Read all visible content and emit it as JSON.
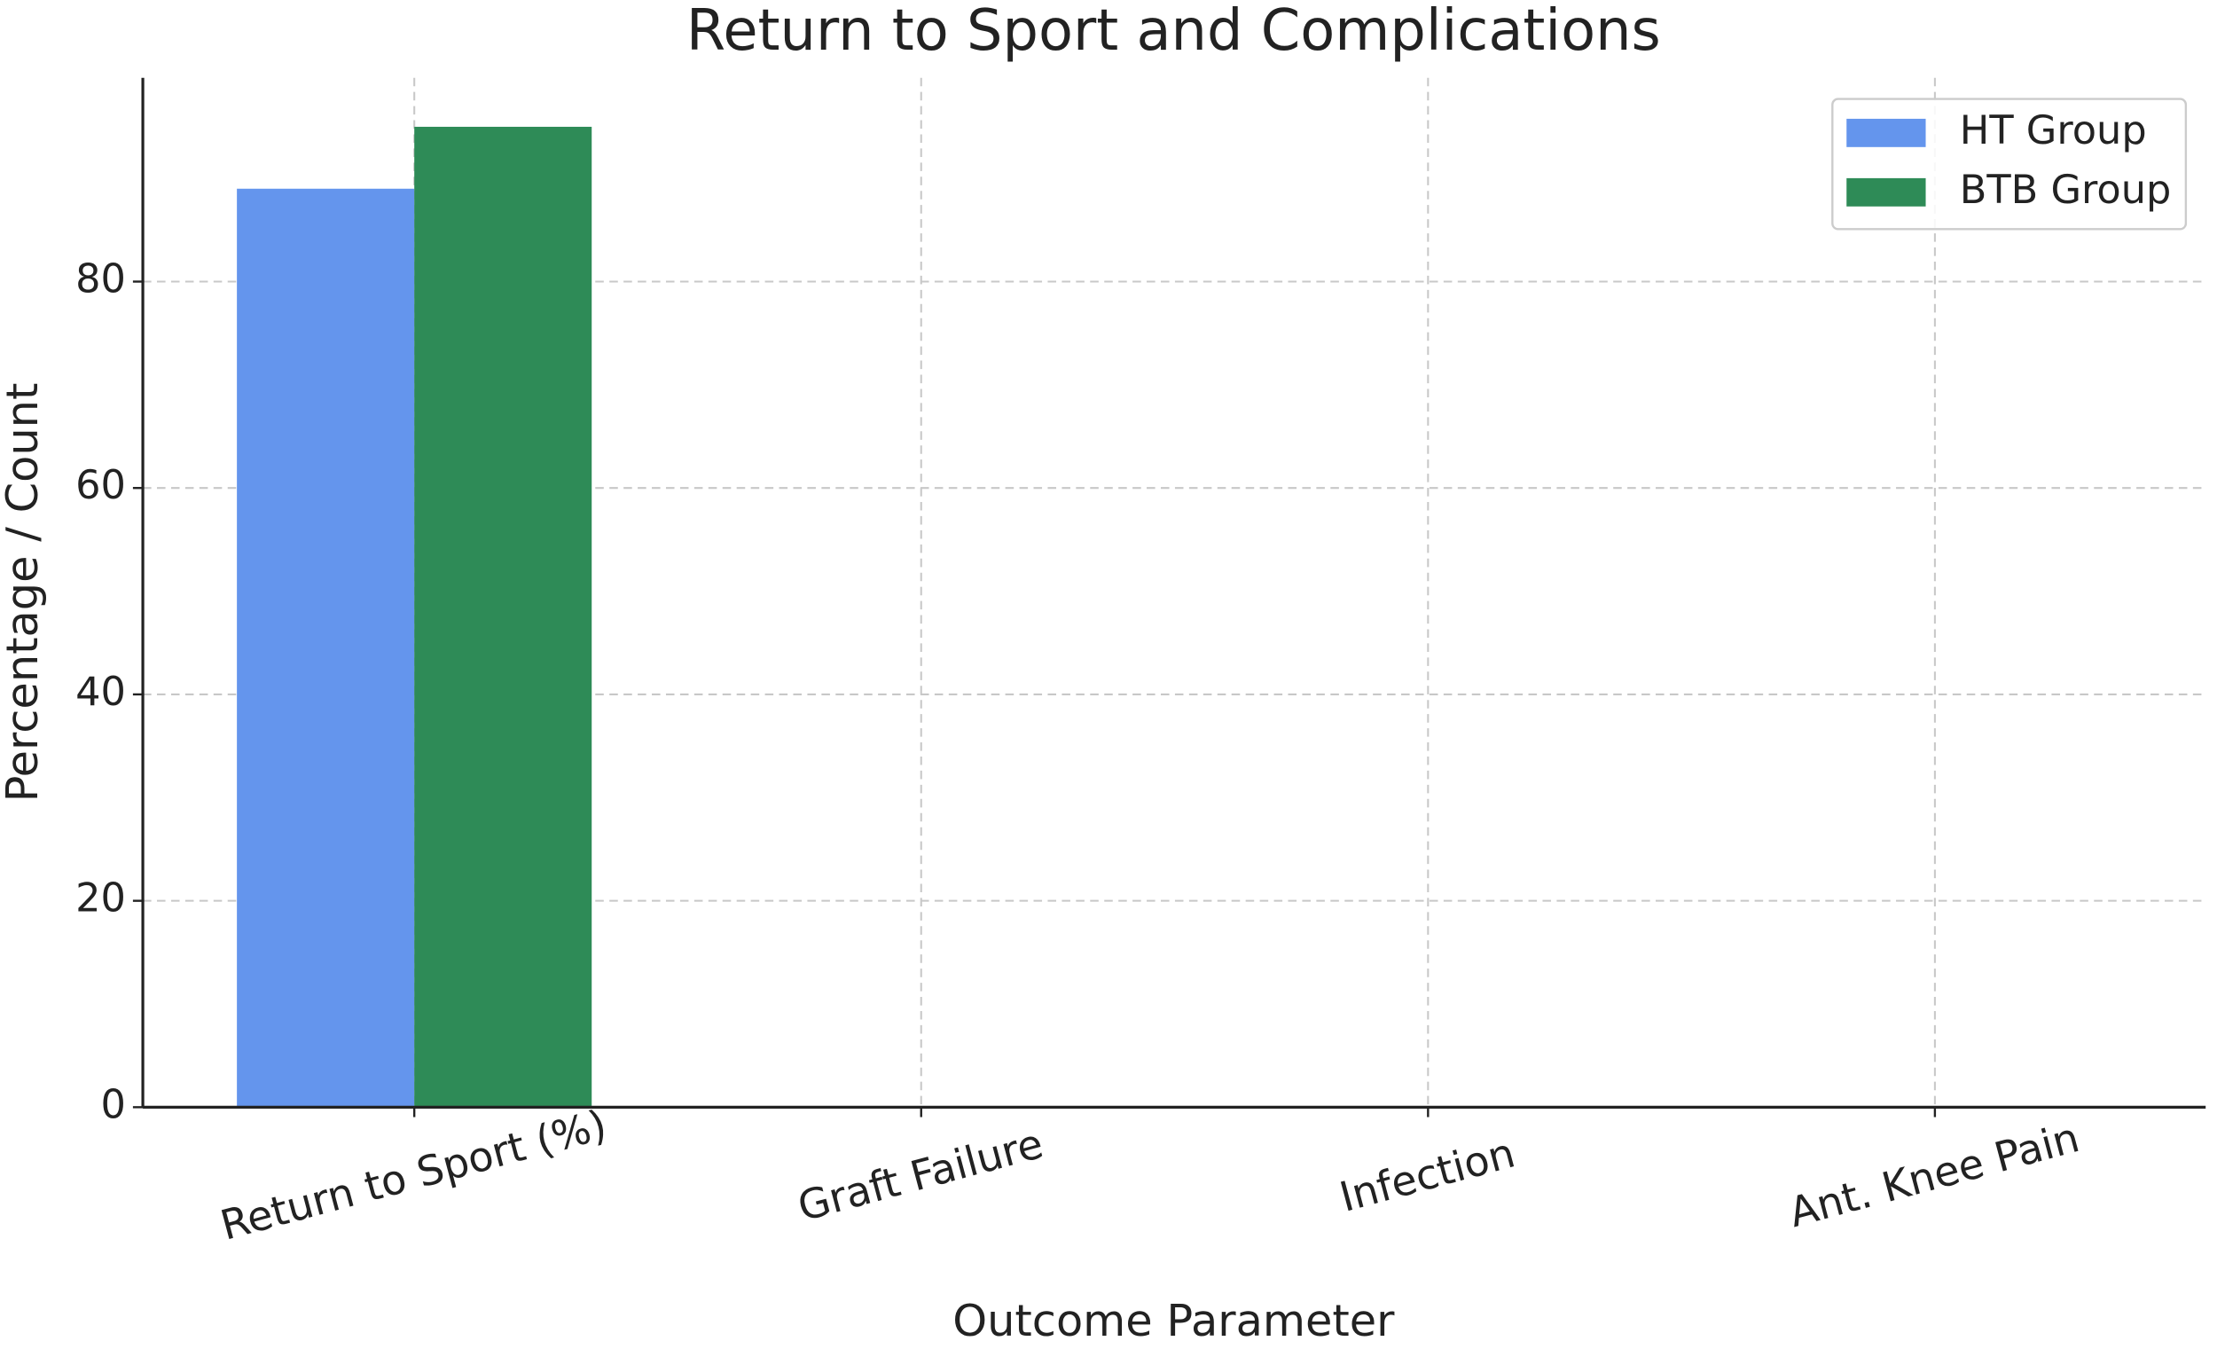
{
  "chart_data": {
    "type": "bar",
    "title": "Return to Sport and Complications",
    "x_label": "Outcome Parameter",
    "y_label": "Percentage / Count",
    "categories": [
      "Return to Sport (%)",
      "Graft Failure",
      "Infection",
      "Ant. Knee Pain"
    ],
    "series": [
      {
        "name": "HT Group",
        "color": "#6495ed",
        "values": [
          89,
          0,
          0,
          0
        ]
      },
      {
        "name": "BTB Group",
        "color": "#2e8b57",
        "values": [
          95,
          0,
          0,
          0
        ]
      }
    ],
    "ylim": [
      0,
      99.75
    ],
    "yticks": [
      0,
      20,
      40,
      60,
      80
    ],
    "grid": true,
    "legend": "upper right"
  }
}
